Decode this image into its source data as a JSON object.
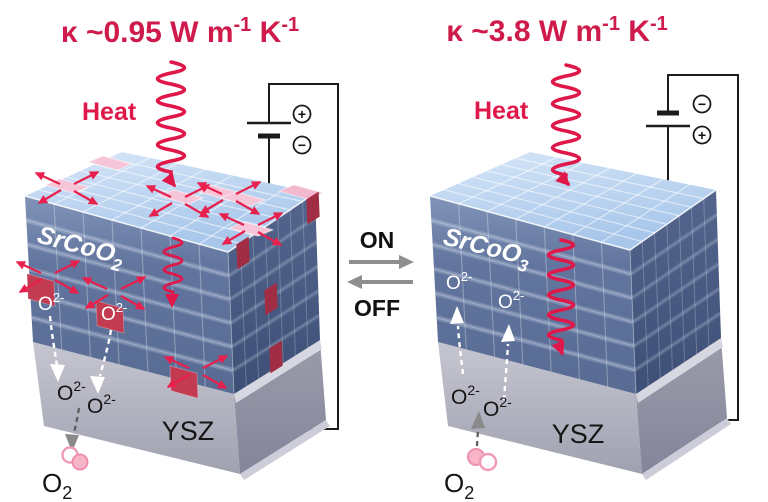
{
  "left_panel": {
    "kappa": {
      "prefix": "κ ~0.95 W m",
      "sup1": "-1",
      "mid": " K",
      "sup2": "-1"
    },
    "heat_label": "Heat",
    "film_label": {
      "base": "SrCoO",
      "sub": "2"
    },
    "battery": {
      "top_sign": "+",
      "bottom_sign": "−"
    },
    "substrate_label": "YSZ",
    "o2_label": {
      "base": "O",
      "sub": "2"
    }
  },
  "right_panel": {
    "kappa": {
      "prefix": "κ ~3.8 W m",
      "sup1": "-1",
      "mid": " K",
      "sup2": "-1"
    },
    "heat_label": "Heat",
    "film_label": {
      "base": "SrCoO",
      "sub": "3"
    },
    "battery": {
      "top_sign": "−",
      "bottom_sign": "+"
    },
    "substrate_label": "YSZ",
    "o2_label": {
      "base": "O",
      "sub": "2"
    }
  },
  "toggle": {
    "on_label": "ON",
    "off_label": "OFF"
  },
  "ion_label": {
    "base": "O",
    "sup": "2-"
  },
  "icons": {
    "heat-wave-icon": "coiled sine arrow pointing down",
    "phonon-scatter-icon": "four crossed red arrows",
    "ion-arrow-icon": "dashed arrow",
    "o2-molecule-icon": "two overlapping pink circles",
    "battery-icon": "two-plate battery symbol",
    "toggle-arrow-icon": "gray horizontal arrow"
  },
  "colors": {
    "crimson_text": "#cf1b4b",
    "arrow_red": "#e8204e",
    "top_face_blue": "#b7d2ef",
    "front_face_blue": "#60739c",
    "side_face_blue": "#46587f",
    "vacancy_pink": "#f6c6d8",
    "vacancy_red": "#c33b51",
    "substrate_gray": "#aeaeba",
    "toggle_gray": "#8e8e8e",
    "wire_black": "#1c1c1c"
  }
}
